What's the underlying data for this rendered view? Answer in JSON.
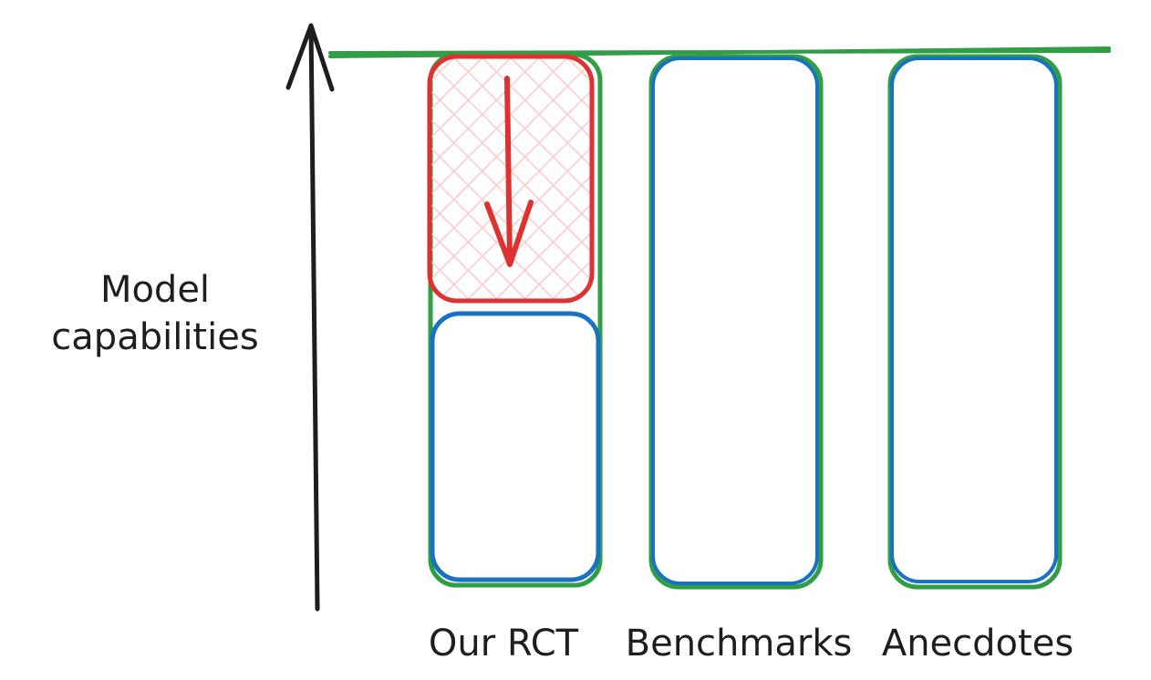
{
  "y_axis_label": [
    "Model",
    "capabilities"
  ],
  "columns": [
    {
      "label": "Our RCT"
    },
    {
      "label": "Benchmarks"
    },
    {
      "label": "Anecdotes"
    }
  ],
  "colors": {
    "axis": "#1e1e1e",
    "outer_box": "#2f9e44",
    "estimate_box": "#1971c2",
    "gap_box": "#e03131",
    "gap_hatch": "#ffc9c9"
  }
}
